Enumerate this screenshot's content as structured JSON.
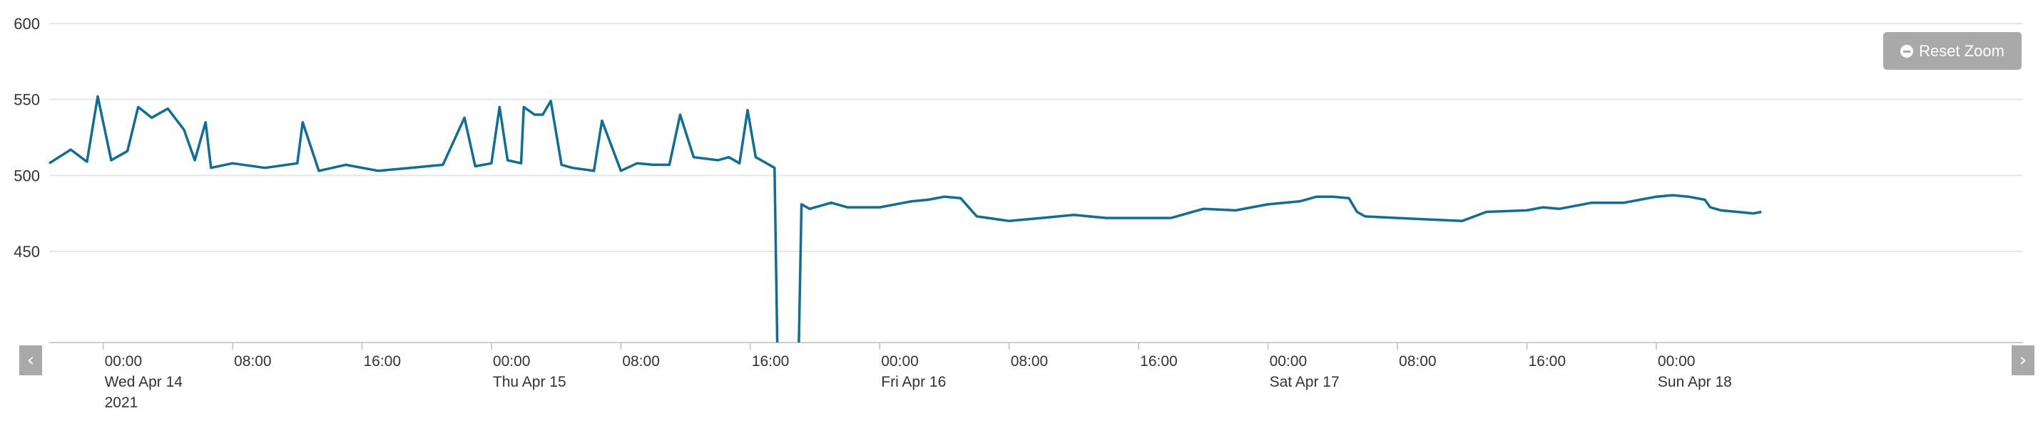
{
  "reset_zoom": {
    "label": "Reset Zoom",
    "icon": "minus-circle-icon"
  },
  "nav": {
    "left_icon": "chevron-left-icon",
    "right_icon": "chevron-right-icon",
    "button_color": "#a9a9a9"
  },
  "chart_data": {
    "type": "line",
    "line_color": "#0d6e9a",
    "grid": true,
    "y_axis": {
      "range": [
        390,
        600
      ],
      "ticks": [
        450,
        500,
        550,
        600
      ]
    },
    "x_axis": {
      "range": [
        "2021-04-13T20:40",
        "2021-04-18T22:40"
      ],
      "ticks": [
        {
          "time": "2021-04-14T00:00",
          "label": "00:00",
          "date": "Wed Apr 14",
          "year": "2021"
        },
        {
          "time": "2021-04-14T08:00",
          "label": "08:00"
        },
        {
          "time": "2021-04-14T16:00",
          "label": "16:00"
        },
        {
          "time": "2021-04-15T00:00",
          "label": "00:00",
          "date": "Thu Apr 15"
        },
        {
          "time": "2021-04-15T08:00",
          "label": "08:00"
        },
        {
          "time": "2021-04-15T16:00",
          "label": "16:00"
        },
        {
          "time": "2021-04-16T00:00",
          "label": "00:00",
          "date": "Fri Apr 16"
        },
        {
          "time": "2021-04-16T08:00",
          "label": "08:00"
        },
        {
          "time": "2021-04-16T16:00",
          "label": "16:00"
        },
        {
          "time": "2021-04-17T00:00",
          "label": "00:00",
          "date": "Sat Apr 17"
        },
        {
          "time": "2021-04-17T08:00",
          "label": "08:00"
        },
        {
          "time": "2021-04-17T16:00",
          "label": "16:00"
        },
        {
          "time": "2021-04-18T00:00",
          "label": "00:00",
          "date": "Sun Apr 18"
        }
      ]
    },
    "series": [
      {
        "points": [
          [
            "2021-04-13T20:40",
            508
          ],
          [
            "2021-04-13T22:00",
            517
          ],
          [
            "2021-04-13T23:00",
            509
          ],
          [
            "2021-04-13T23:40",
            552
          ],
          [
            "2021-04-14T00:30",
            510
          ],
          [
            "2021-04-14T01:30",
            516
          ],
          [
            "2021-04-14T02:10",
            545
          ],
          [
            "2021-04-14T03:00",
            538
          ],
          [
            "2021-04-14T04:00",
            544
          ],
          [
            "2021-04-14T05:00",
            530
          ],
          [
            "2021-04-14T05:40",
            510
          ],
          [
            "2021-04-14T06:20",
            535
          ],
          [
            "2021-04-14T06:40",
            505
          ],
          [
            "2021-04-14T08:00",
            508
          ],
          [
            "2021-04-14T10:00",
            505
          ],
          [
            "2021-04-14T12:00",
            508
          ],
          [
            "2021-04-14T12:20",
            535
          ],
          [
            "2021-04-14T13:20",
            503
          ],
          [
            "2021-04-14T15:00",
            507
          ],
          [
            "2021-04-14T17:00",
            503
          ],
          [
            "2021-04-14T19:00",
            505
          ],
          [
            "2021-04-14T21:00",
            507
          ],
          [
            "2021-04-14T22:20",
            538
          ],
          [
            "2021-04-14T23:00",
            506
          ],
          [
            "2021-04-15T00:00",
            508
          ],
          [
            "2021-04-15T00:30",
            545
          ],
          [
            "2021-04-15T01:00",
            510
          ],
          [
            "2021-04-15T01:50",
            508
          ],
          [
            "2021-04-15T02:00",
            545
          ],
          [
            "2021-04-15T02:40",
            540
          ],
          [
            "2021-04-15T03:10",
            540
          ],
          [
            "2021-04-15T03:40",
            549
          ],
          [
            "2021-04-15T04:20",
            507
          ],
          [
            "2021-04-15T05:00",
            505
          ],
          [
            "2021-04-15T06:20",
            503
          ],
          [
            "2021-04-15T06:50",
            536
          ],
          [
            "2021-04-15T08:00",
            503
          ],
          [
            "2021-04-15T09:00",
            508
          ],
          [
            "2021-04-15T10:00",
            507
          ],
          [
            "2021-04-15T11:00",
            507
          ],
          [
            "2021-04-15T11:40",
            540
          ],
          [
            "2021-04-15T12:30",
            512
          ],
          [
            "2021-04-15T14:00",
            510
          ],
          [
            "2021-04-15T14:40",
            512
          ],
          [
            "2021-04-15T15:20",
            508
          ],
          [
            "2021-04-15T15:50",
            543
          ],
          [
            "2021-04-15T16:20",
            512
          ],
          [
            "2021-04-15T17:10",
            507
          ],
          [
            "2021-04-15T17:30",
            505
          ],
          [
            "2021-04-15T17:40",
            390
          ],
          null,
          [
            "2021-04-15T19:00",
            390
          ],
          [
            "2021-04-15T19:10",
            481
          ],
          [
            "2021-04-15T19:40",
            478
          ],
          [
            "2021-04-15T21:00",
            482
          ],
          [
            "2021-04-15T22:00",
            479
          ],
          [
            "2021-04-16T00:00",
            479
          ],
          [
            "2021-04-16T02:00",
            483
          ],
          [
            "2021-04-16T03:00",
            484
          ],
          [
            "2021-04-16T04:00",
            486
          ],
          [
            "2021-04-16T05:00",
            485
          ],
          [
            "2021-04-16T06:00",
            473
          ],
          [
            "2021-04-16T08:00",
            470
          ],
          [
            "2021-04-16T10:00",
            472
          ],
          [
            "2021-04-16T12:00",
            474
          ],
          [
            "2021-04-16T14:00",
            472
          ],
          [
            "2021-04-16T16:00",
            472
          ],
          [
            "2021-04-16T18:00",
            472
          ],
          [
            "2021-04-16T20:00",
            478
          ],
          [
            "2021-04-16T22:00",
            477
          ],
          [
            "2021-04-17T00:00",
            481
          ],
          [
            "2021-04-17T02:00",
            483
          ],
          [
            "2021-04-17T03:00",
            486
          ],
          [
            "2021-04-17T04:00",
            486
          ],
          [
            "2021-04-17T05:00",
            485
          ],
          [
            "2021-04-17T05:30",
            476
          ],
          [
            "2021-04-17T06:00",
            473
          ],
          [
            "2021-04-17T08:00",
            472
          ],
          [
            "2021-04-17T10:00",
            471
          ],
          [
            "2021-04-17T12:00",
            470
          ],
          [
            "2021-04-17T13:30",
            476
          ],
          [
            "2021-04-17T16:00",
            477
          ],
          [
            "2021-04-17T17:00",
            479
          ],
          [
            "2021-04-17T18:00",
            478
          ],
          [
            "2021-04-17T20:00",
            482
          ],
          [
            "2021-04-17T22:00",
            482
          ],
          [
            "2021-04-18T00:00",
            486
          ],
          [
            "2021-04-18T01:00",
            487
          ],
          [
            "2021-04-18T02:00",
            486
          ],
          [
            "2021-04-18T03:00",
            484
          ],
          [
            "2021-04-18T03:20",
            479
          ],
          [
            "2021-04-18T04:00",
            477
          ],
          [
            "2021-04-18T05:00",
            476
          ],
          [
            "2021-04-18T06:00",
            475
          ],
          [
            "2021-04-18T06:30",
            476
          ]
        ]
      }
    ]
  }
}
